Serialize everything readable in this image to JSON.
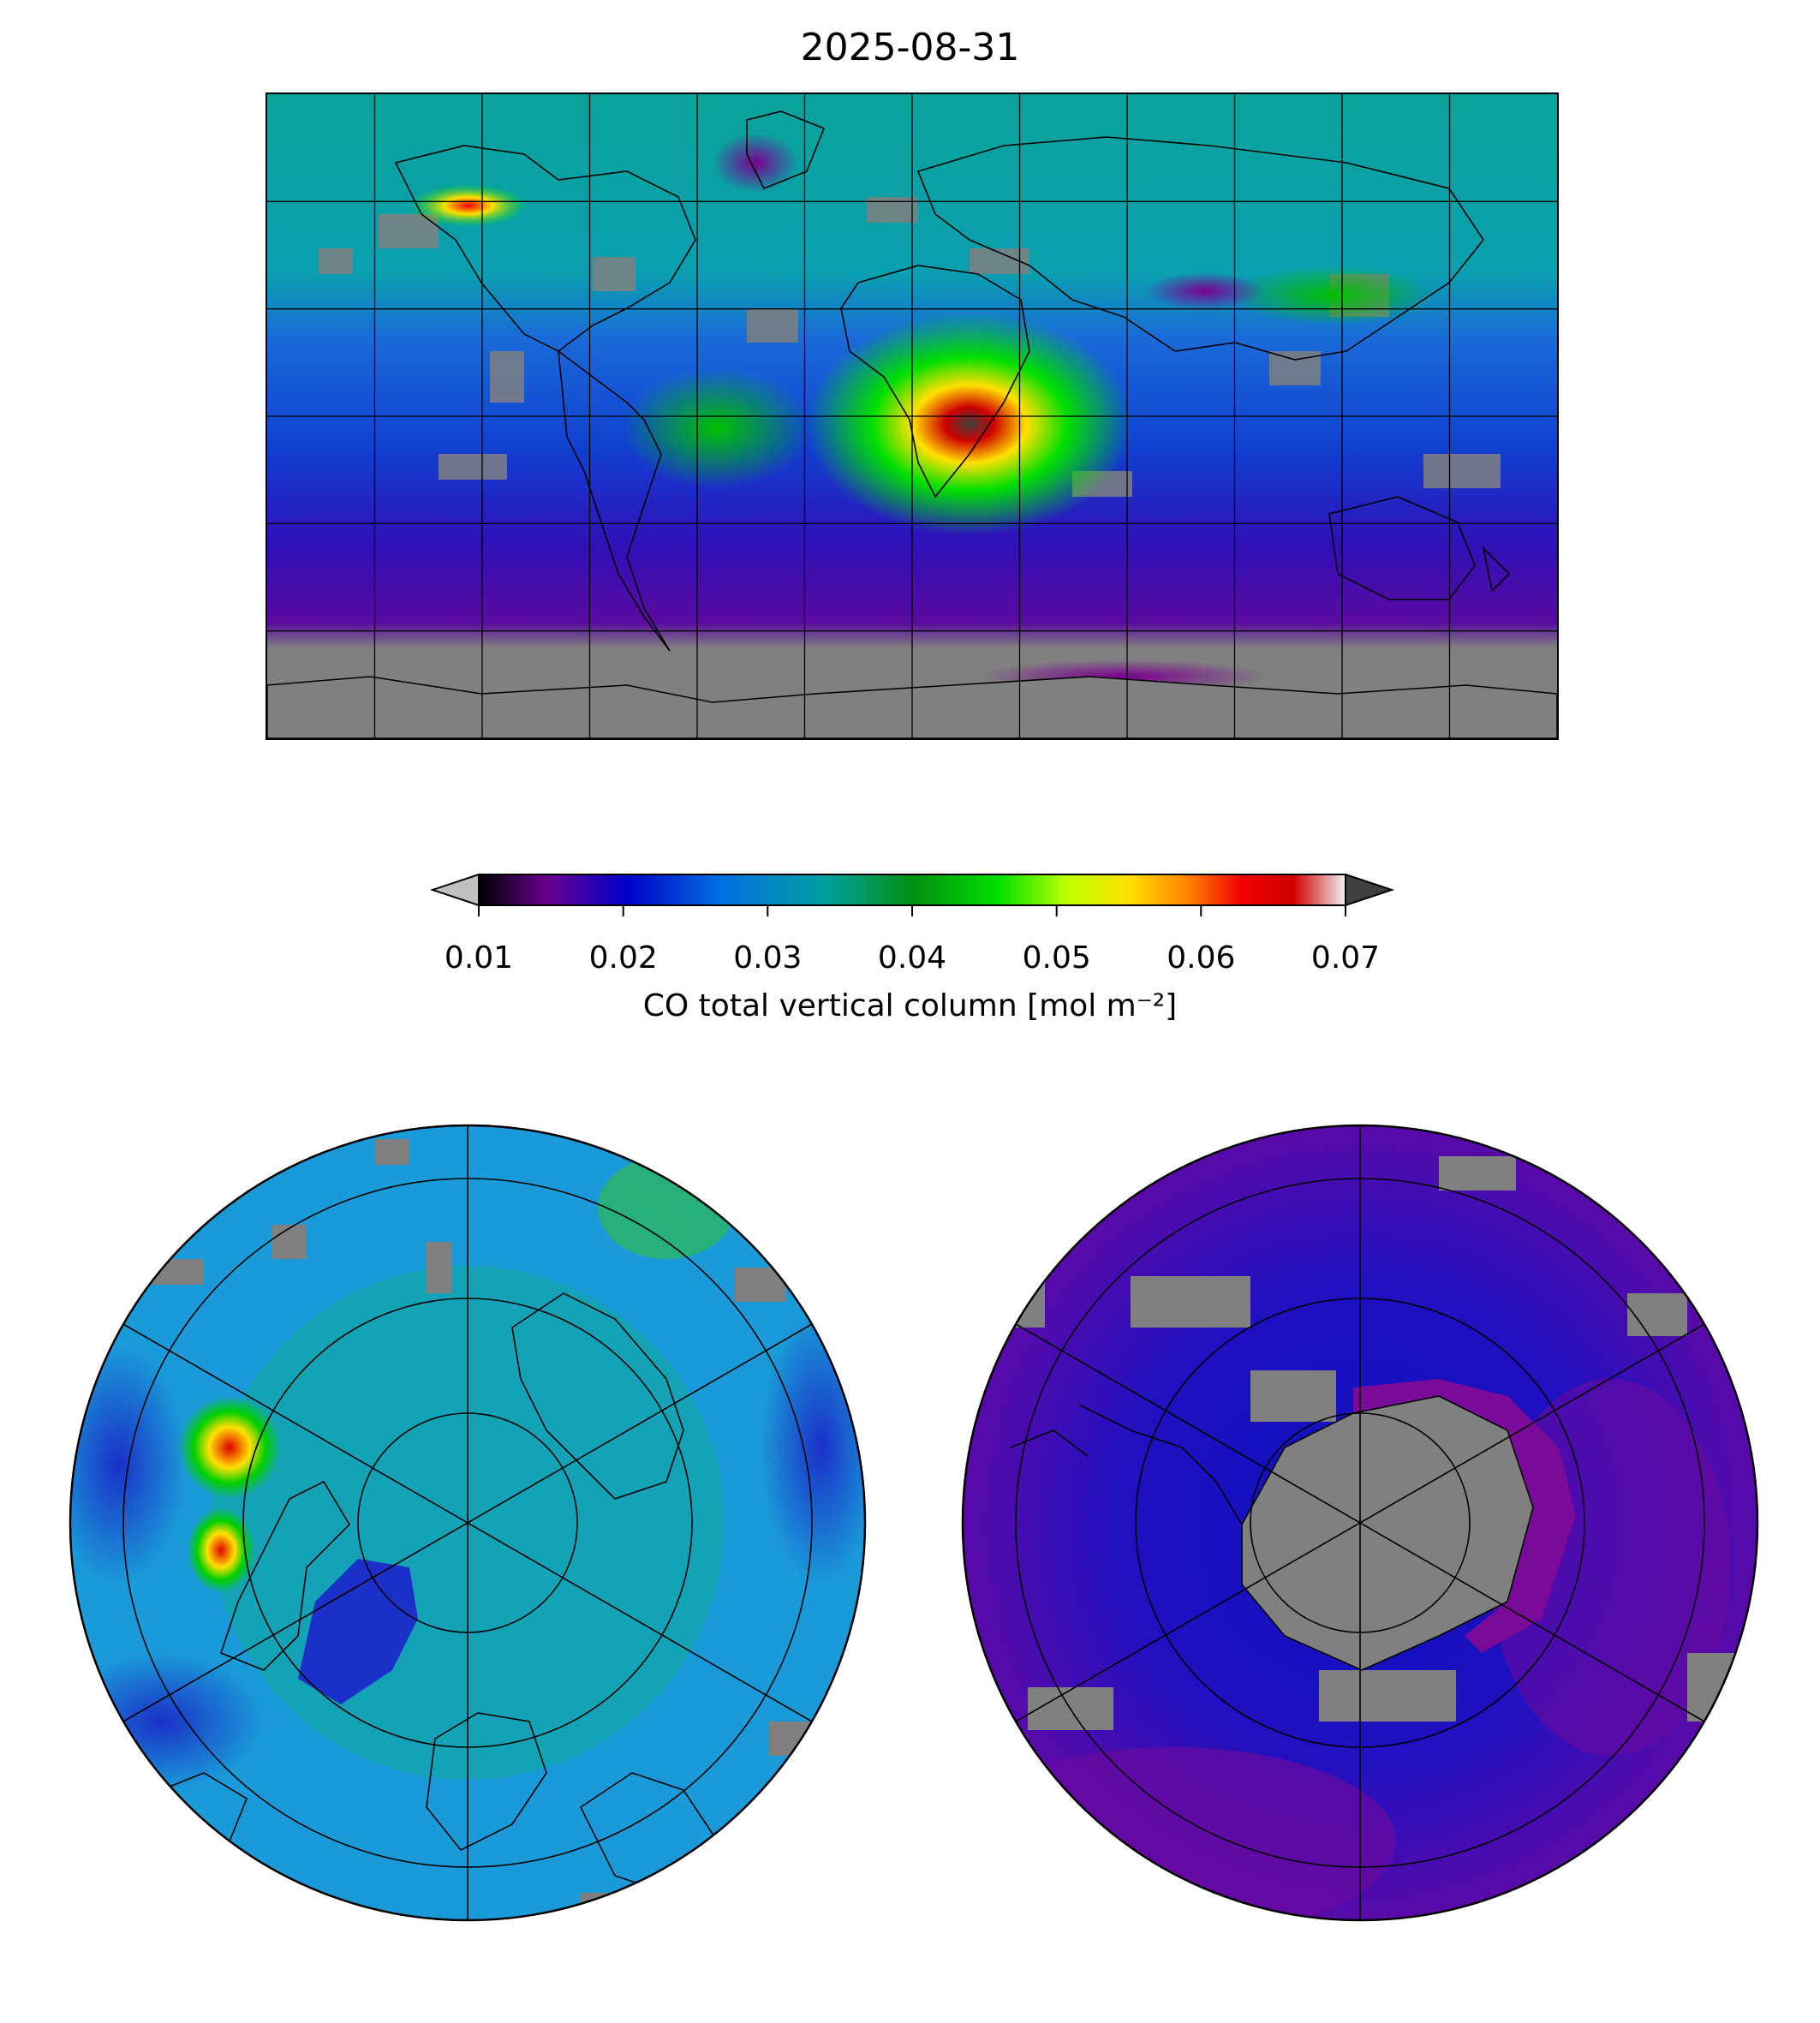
{
  "title": "2025-08-31",
  "colorbar": {
    "label": "CO total vertical column [mol m⁻²]",
    "ticks": [
      "0.01",
      "0.02",
      "0.03",
      "0.04",
      "0.05",
      "0.06",
      "0.07"
    ],
    "vmin": 0.01,
    "vmax": 0.07,
    "extend": "both",
    "under_color": "#c0c0c0",
    "over_color": "#404040",
    "stops": [
      "#000000",
      "#6a0090",
      "#0000c8",
      "#0070e0",
      "#00a0a0",
      "#009010",
      "#00e000",
      "#c0ff00",
      "#ffe000",
      "#ff8000",
      "#f00000",
      "#d00000",
      "#f0f0f0"
    ]
  },
  "colors": {
    "no_data": "#808080",
    "background_ocean": "#0aa39a",
    "coastline": "#000000",
    "gridline": "#000000"
  },
  "maps": {
    "main": {
      "projection": "plate-carree",
      "grid": true
    },
    "north": {
      "projection": "north-polar-stereographic",
      "grid": true
    },
    "south": {
      "projection": "south-polar-stereographic",
      "grid": true
    }
  }
}
